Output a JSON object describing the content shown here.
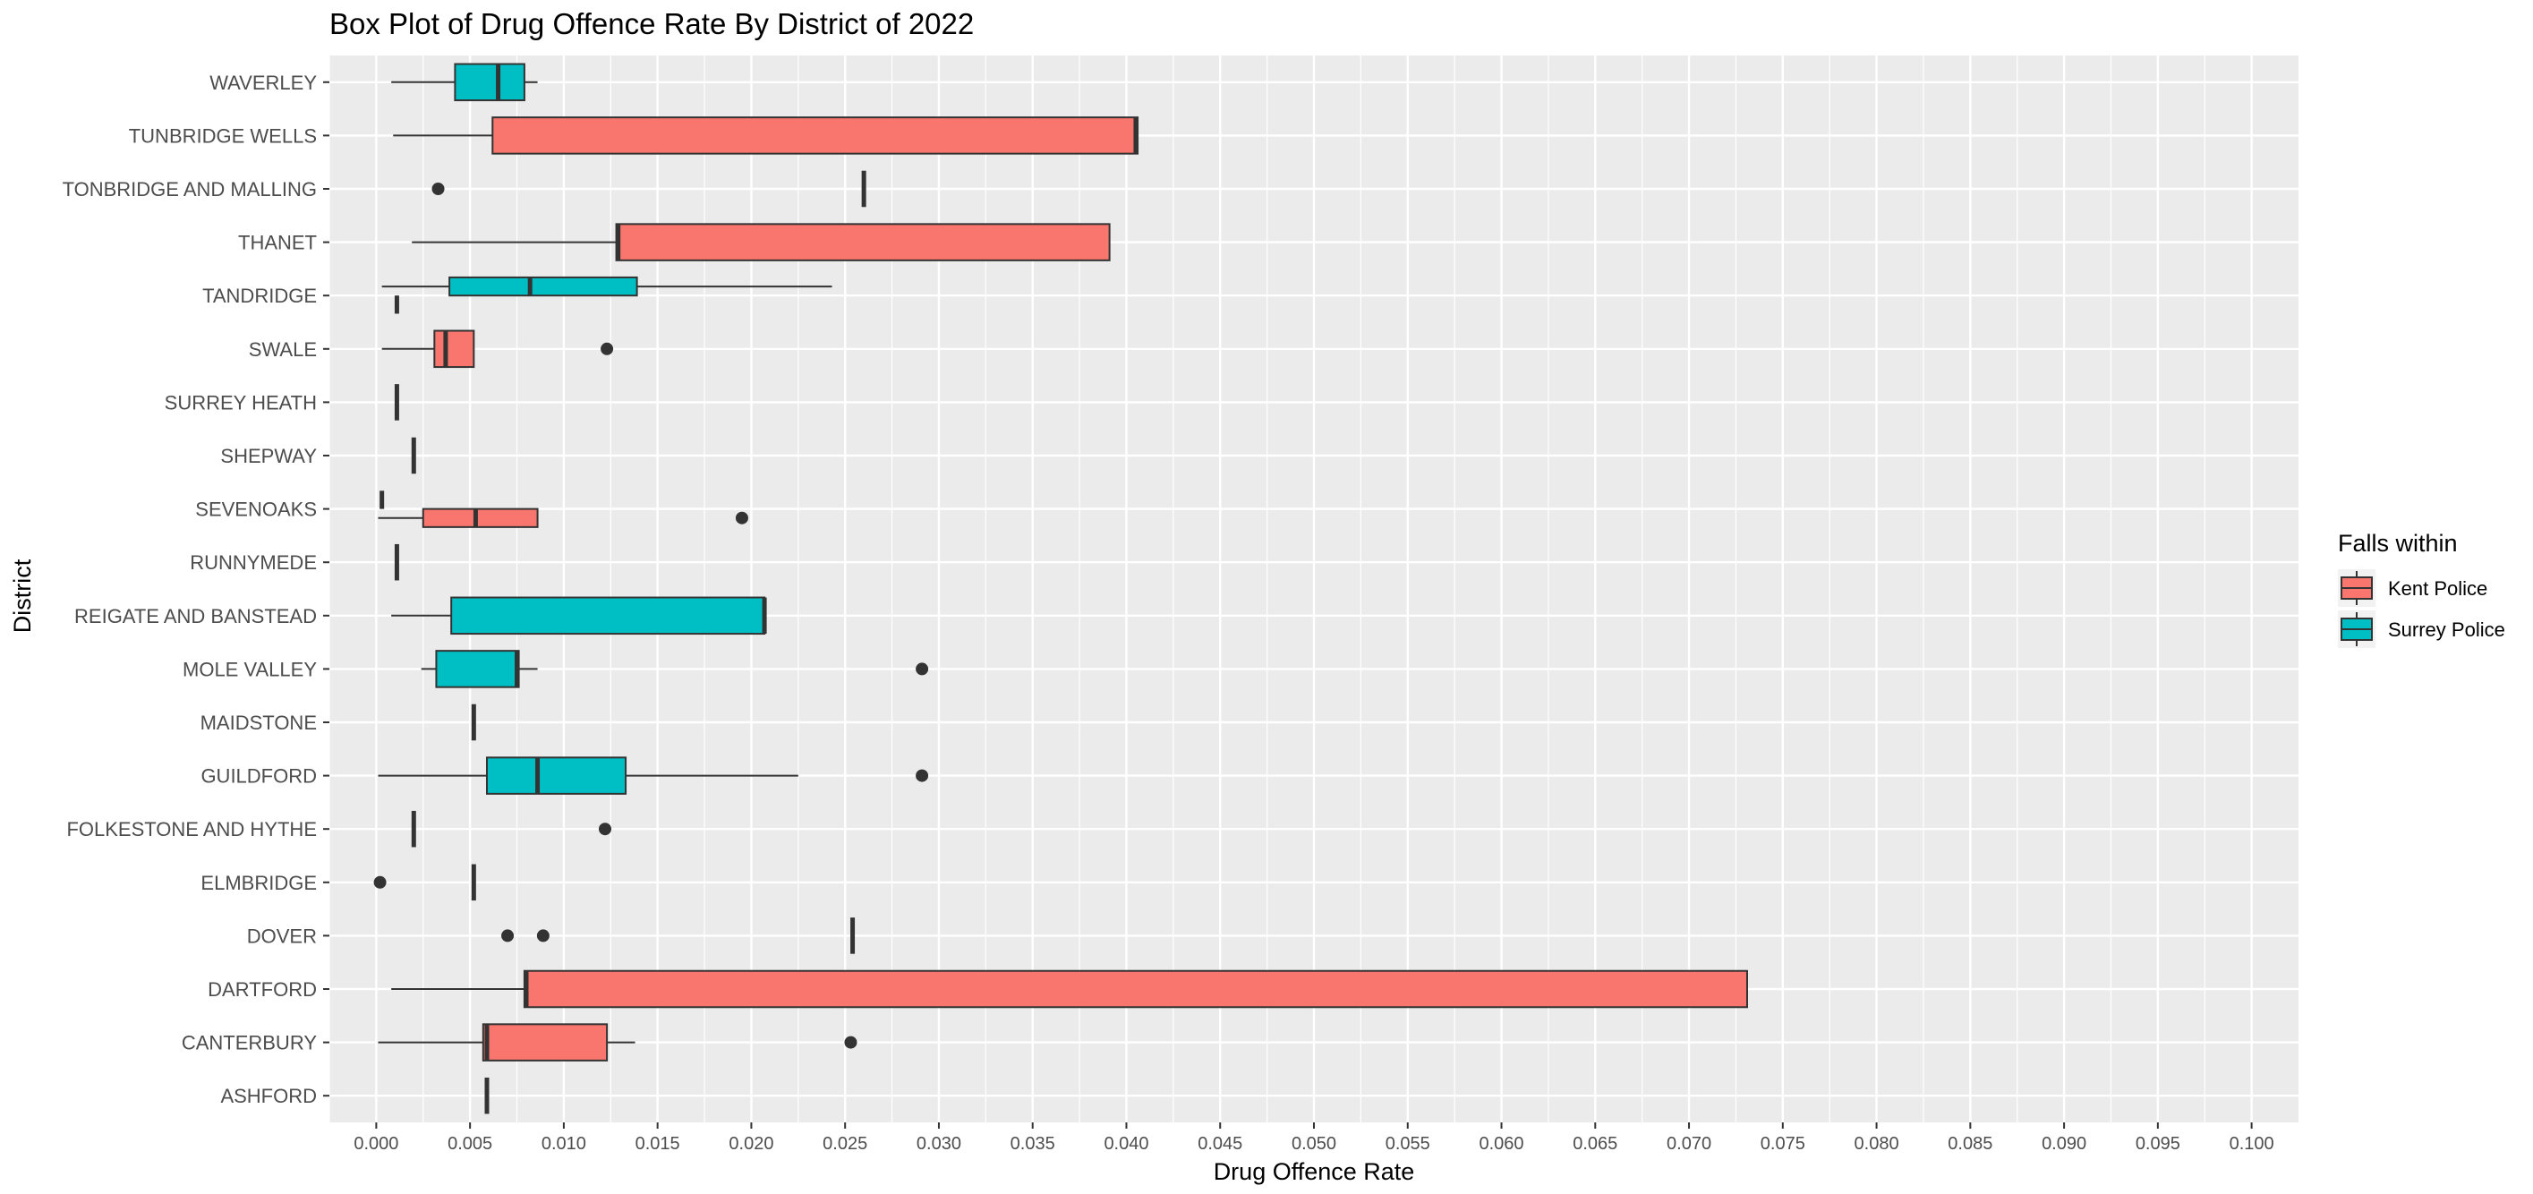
{
  "chart_data": {
    "type": "boxplot",
    "orientation": "horizontal",
    "title": "Box Plot of Drug Offence Rate By District of 2022",
    "xlabel": "Drug Offence Rate",
    "ylabel": "District",
    "xlim": [
      -0.0025,
      0.1025
    ],
    "x_ticks": [
      "0.000",
      "0.005",
      "0.010",
      "0.015",
      "0.020",
      "0.025",
      "0.030",
      "0.035",
      "0.040",
      "0.045",
      "0.050",
      "0.055",
      "0.060",
      "0.065",
      "0.070",
      "0.075",
      "0.080",
      "0.085",
      "0.090",
      "0.095",
      "0.100"
    ],
    "grid": true,
    "legend": {
      "title": "Falls within",
      "position": "right",
      "items": [
        {
          "name": "Kent Police",
          "color": "#F8766D"
        },
        {
          "name": "Surrey Police",
          "color": "#00BFC4"
        }
      ]
    },
    "categories": [
      "WAVERLEY",
      "TUNBRIDGE WELLS",
      "TONBRIDGE AND MALLING",
      "THANET",
      "TANDRIDGE",
      "SWALE",
      "SURREY HEATH",
      "SHEPWAY",
      "SEVENOAKS",
      "RUNNYMEDE",
      "REIGATE AND BANSTEAD",
      "MOLE VALLEY",
      "MAIDSTONE",
      "GUILDFORD",
      "FOLKESTONE AND HYTHE",
      "ELMBRIDGE",
      "DOVER",
      "DARTFORD",
      "CANTERBURY",
      "ASHFORD"
    ],
    "boxes": [
      {
        "category": "WAVERLEY",
        "group": "Surrey Police",
        "slot": "full",
        "whisker_low": 0.0008,
        "q1": 0.0042,
        "median": 0.0065,
        "q3": 0.0079,
        "whisker_high": 0.0086,
        "outliers": []
      },
      {
        "category": "TUNBRIDGE WELLS",
        "group": "Kent Police",
        "slot": "full",
        "whisker_low": 0.0009,
        "q1": 0.0062,
        "median": 0.0405,
        "q3": 0.0406,
        "whisker_high": 0.0406,
        "outliers": []
      },
      {
        "category": "TONBRIDGE AND MALLING",
        "group": "Kent Police",
        "slot": "full",
        "whisker_low": 0.026,
        "q1": 0.026,
        "median": 0.026,
        "q3": 0.026,
        "whisker_high": 0.026,
        "outliers": [
          0.0033
        ]
      },
      {
        "category": "THANET",
        "group": "Kent Police",
        "slot": "full",
        "whisker_low": 0.0019,
        "q1": 0.0128,
        "median": 0.0129,
        "q3": 0.0391,
        "whisker_high": 0.0391,
        "outliers": []
      },
      {
        "category": "TANDRIDGE",
        "group": "Kent Police",
        "slot": "lower",
        "whisker_low": 0.0011,
        "q1": 0.0011,
        "median": 0.0011,
        "q3": 0.0011,
        "whisker_high": 0.0011,
        "outliers": []
      },
      {
        "category": "TANDRIDGE",
        "group": "Surrey Police",
        "slot": "upper",
        "whisker_low": 0.0003,
        "q1": 0.0039,
        "median": 0.0082,
        "q3": 0.0139,
        "whisker_high": 0.0243,
        "outliers": []
      },
      {
        "category": "SWALE",
        "group": "Kent Police",
        "slot": "full",
        "whisker_low": 0.0003,
        "q1": 0.0031,
        "median": 0.0037,
        "q3": 0.0052,
        "whisker_high": 0.0052,
        "outliers": [
          0.0123
        ]
      },
      {
        "category": "SURREY HEATH",
        "group": "Surrey Police",
        "slot": "full",
        "whisker_low": 0.0011,
        "q1": 0.0011,
        "median": 0.0011,
        "q3": 0.0011,
        "whisker_high": 0.0011,
        "outliers": []
      },
      {
        "category": "SHEPWAY",
        "group": "Kent Police",
        "slot": "full",
        "whisker_low": 0.002,
        "q1": 0.002,
        "median": 0.002,
        "q3": 0.002,
        "whisker_high": 0.002,
        "outliers": []
      },
      {
        "category": "SEVENOAKS",
        "group": "Surrey Police",
        "slot": "upper",
        "whisker_low": 0.0003,
        "q1": 0.0003,
        "median": 0.0003,
        "q3": 0.0003,
        "whisker_high": 0.0003,
        "outliers": []
      },
      {
        "category": "SEVENOAKS",
        "group": "Kent Police",
        "slot": "lower",
        "whisker_low": 0.0001,
        "q1": 0.0025,
        "median": 0.0053,
        "q3": 0.0086,
        "whisker_high": 0.0086,
        "outliers": [
          0.0195
        ]
      },
      {
        "category": "RUNNYMEDE",
        "group": "Surrey Police",
        "slot": "full",
        "whisker_low": 0.0011,
        "q1": 0.0011,
        "median": 0.0011,
        "q3": 0.0011,
        "whisker_high": 0.0011,
        "outliers": []
      },
      {
        "category": "REIGATE AND BANSTEAD",
        "group": "Surrey Police",
        "slot": "full",
        "whisker_low": 0.0008,
        "q1": 0.004,
        "median": 0.0207,
        "q3": 0.0207,
        "whisker_high": 0.0207,
        "outliers": []
      },
      {
        "category": "MOLE VALLEY",
        "group": "Surrey Police",
        "slot": "full",
        "whisker_low": 0.0024,
        "q1": 0.0032,
        "median": 0.0075,
        "q3": 0.0076,
        "whisker_high": 0.0086,
        "outliers": [
          0.0291
        ]
      },
      {
        "category": "MAIDSTONE",
        "group": "Kent Police",
        "slot": "full",
        "whisker_low": 0.0052,
        "q1": 0.0052,
        "median": 0.0052,
        "q3": 0.0052,
        "whisker_high": 0.0052,
        "outliers": []
      },
      {
        "category": "GUILDFORD",
        "group": "Surrey Police",
        "slot": "full",
        "whisker_low": 0.0001,
        "q1": 0.0059,
        "median": 0.0086,
        "q3": 0.0133,
        "whisker_high": 0.0225,
        "outliers": [
          0.0291
        ]
      },
      {
        "category": "FOLKESTONE AND HYTHE",
        "group": "Kent Police",
        "slot": "full",
        "whisker_low": 0.002,
        "q1": 0.002,
        "median": 0.002,
        "q3": 0.002,
        "whisker_high": 0.002,
        "outliers": [
          0.0122
        ]
      },
      {
        "category": "ELMBRIDGE",
        "group": "Surrey Police",
        "slot": "full",
        "whisker_low": 0.0052,
        "q1": 0.0052,
        "median": 0.0052,
        "q3": 0.0052,
        "whisker_high": 0.0052,
        "outliers": [
          0.0002
        ]
      },
      {
        "category": "DOVER",
        "group": "Kent Police",
        "slot": "full",
        "whisker_low": 0.0254,
        "q1": 0.0254,
        "median": 0.0254,
        "q3": 0.0254,
        "whisker_high": 0.0254,
        "outliers": [
          0.007,
          0.0089
        ]
      },
      {
        "category": "DARTFORD",
        "group": "Kent Police",
        "slot": "full",
        "whisker_low": 0.0008,
        "q1": 0.0079,
        "median": 0.008,
        "q3": 0.0731,
        "whisker_high": 0.0731,
        "outliers": []
      },
      {
        "category": "CANTERBURY",
        "group": "Kent Police",
        "slot": "full",
        "whisker_low": 0.0001,
        "q1": 0.0057,
        "median": 0.0059,
        "q3": 0.0123,
        "whisker_high": 0.0138,
        "outliers": [
          0.0253
        ]
      },
      {
        "category": "ASHFORD",
        "group": "Kent Police",
        "slot": "full",
        "whisker_low": 0.0059,
        "q1": 0.0059,
        "median": 0.0059,
        "q3": 0.0059,
        "whisker_high": 0.0059,
        "outliers": []
      }
    ]
  }
}
